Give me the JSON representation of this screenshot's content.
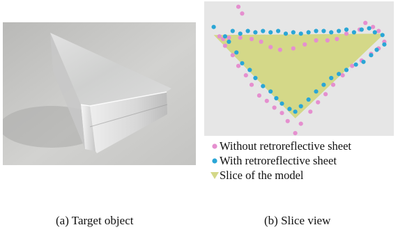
{
  "figure": {
    "left_caption": "(a) Target object",
    "right_caption": "(b) Slice view"
  },
  "legend": [
    {
      "label": "Without retroreflective sheet",
      "marker": "circle",
      "color": "#e58fcf"
    },
    {
      "label": "With retroreflective sheet",
      "marker": "circle",
      "color": "#2aa6d6"
    },
    {
      "label": "Slice of the model",
      "marker": "triangle",
      "color": "#d4d888"
    }
  ],
  "photo": {
    "subject_icon": "glass-triangular-prism-photo",
    "background_color": "#c9c9c7"
  },
  "chart_data": {
    "type": "scatter",
    "xlim": [
      0,
      100
    ],
    "ylim": [
      0,
      100
    ],
    "grid": false,
    "background_color": "#e6e6e6",
    "region": {
      "name": "Slice of the model",
      "color": "#d4d888",
      "points": [
        [
          5,
          75
        ],
        [
          95,
          76
        ],
        [
          48,
          13
        ]
      ]
    },
    "series": [
      {
        "name": "Without retroreflective sheet",
        "color": "#e58fcf",
        "points": [
          [
            18,
            96
          ],
          [
            20,
            91
          ],
          [
            8,
            74
          ],
          [
            10,
            72
          ],
          [
            11,
            67
          ],
          [
            15,
            60
          ],
          [
            18,
            52
          ],
          [
            22,
            45
          ],
          [
            25,
            38
          ],
          [
            29,
            30
          ],
          [
            33,
            26
          ],
          [
            37,
            21
          ],
          [
            41,
            17
          ],
          [
            44,
            11
          ],
          [
            48,
            2
          ],
          [
            51,
            9
          ],
          [
            56,
            18
          ],
          [
            60,
            25
          ],
          [
            64,
            31
          ],
          [
            68,
            38
          ],
          [
            73,
            45
          ],
          [
            78,
            52
          ],
          [
            83,
            56
          ],
          [
            88,
            61
          ],
          [
            92,
            65
          ],
          [
            95,
            70
          ],
          [
            92,
            78
          ],
          [
            89,
            81
          ],
          [
            85,
            84
          ],
          [
            82,
            79
          ],
          [
            75,
            76
          ],
          [
            70,
            72
          ],
          [
            65,
            71
          ],
          [
            59,
            71
          ],
          [
            53,
            68
          ],
          [
            47,
            65
          ],
          [
            40,
            64
          ],
          [
            35,
            66
          ],
          [
            30,
            70
          ],
          [
            25,
            72
          ],
          [
            19,
            73
          ],
          [
            13,
            73
          ]
        ]
      },
      {
        "name": "With retroreflective sheet",
        "color": "#2aa6d6",
        "points": [
          [
            5,
            81
          ],
          [
            11,
            74
          ],
          [
            13,
            70
          ],
          [
            17,
            62
          ],
          [
            20,
            54
          ],
          [
            24,
            49
          ],
          [
            27,
            43
          ],
          [
            31,
            37
          ],
          [
            35,
            33
          ],
          [
            38,
            28
          ],
          [
            41,
            24
          ],
          [
            45,
            20
          ],
          [
            48,
            18
          ],
          [
            51,
            22
          ],
          [
            55,
            27
          ],
          [
            59,
            33
          ],
          [
            63,
            38
          ],
          [
            67,
            43
          ],
          [
            71,
            46
          ],
          [
            75,
            49
          ],
          [
            80,
            53
          ],
          [
            84,
            55
          ],
          [
            88,
            60
          ],
          [
            91,
            64
          ],
          [
            95,
            68
          ],
          [
            94,
            75
          ],
          [
            90,
            77
          ],
          [
            87,
            80
          ],
          [
            83,
            79
          ],
          [
            79,
            77
          ],
          [
            75,
            79
          ],
          [
            71,
            78
          ],
          [
            67,
            77
          ],
          [
            63,
            78
          ],
          [
            59,
            78
          ],
          [
            55,
            77
          ],
          [
            51,
            76
          ],
          [
            47,
            77
          ],
          [
            43,
            76
          ],
          [
            39,
            78
          ],
          [
            35,
            77
          ],
          [
            31,
            78
          ],
          [
            27,
            77
          ],
          [
            23,
            78
          ],
          [
            19,
            76
          ],
          [
            15,
            78
          ]
        ]
      }
    ]
  }
}
